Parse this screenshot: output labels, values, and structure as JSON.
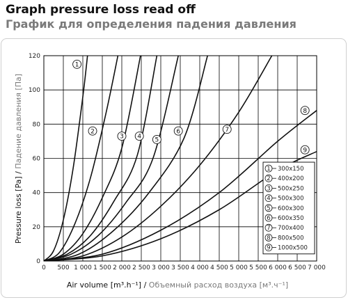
{
  "title_en": "Graph pressure loss read off",
  "title_ru": "График для определения падения давления",
  "chart_data": {
    "type": "line",
    "xlabel_en": "Air volume [m³.h⁻¹]",
    "xlabel_sep": " / ",
    "xlabel_ru": "Объемный расход воздуха [м³.ч⁻¹]",
    "ylabel_en": "Pressure loss [Pa]",
    "ylabel_sep": " / ",
    "ylabel_ru": "Падение давления [Па]",
    "xlim": [
      0,
      7000
    ],
    "ylim": [
      0,
      120
    ],
    "x_ticks": [
      0,
      500,
      1000,
      1500,
      2000,
      2500,
      3000,
      3500,
      4000,
      4500,
      5000,
      5500,
      6000,
      6500,
      7000
    ],
    "x_tick_labels": [
      "0",
      "500",
      "1 000",
      "1 500",
      "2 000",
      "2 500",
      "3 000",
      "3 500",
      "4 000",
      "4 500",
      "5 000",
      "5 500",
      "6 000",
      "6 500",
      "7 000"
    ],
    "y_ticks": [
      0,
      20,
      40,
      60,
      80,
      100,
      120
    ],
    "y_tick_labels": [
      "0",
      "20",
      "40",
      "60",
      "80",
      "100",
      "120"
    ],
    "grid": true,
    "legend_position": "bottom-right",
    "series": [
      {
        "name": "300x150",
        "label": "1",
        "points": [
          [
            0,
            0
          ],
          [
            250,
            6
          ],
          [
            500,
            24
          ],
          [
            750,
            54
          ],
          [
            1000,
            96
          ],
          [
            1120,
            120
          ]
        ]
      },
      {
        "name": "400x200",
        "label": "2",
        "points": [
          [
            0,
            0
          ],
          [
            400,
            5
          ],
          [
            800,
            22
          ],
          [
            1200,
            49
          ],
          [
            1600,
            87
          ],
          [
            1900,
            120
          ]
        ]
      },
      {
        "name": "500x250",
        "label": "3",
        "points": [
          [
            0,
            0
          ],
          [
            500,
            4
          ],
          [
            1000,
            16
          ],
          [
            1500,
            37
          ],
          [
            2000,
            66
          ],
          [
            2480,
            120
          ]
        ]
      },
      {
        "name": "500x300",
        "label": "4",
        "points": [
          [
            0,
            0
          ],
          [
            600,
            4
          ],
          [
            1200,
            15
          ],
          [
            1800,
            35
          ],
          [
            2400,
            62
          ],
          [
            2900,
            120
          ]
        ]
      },
      {
        "name": "600x300",
        "label": "5",
        "points": [
          [
            0,
            0
          ],
          [
            700,
            4
          ],
          [
            1400,
            15
          ],
          [
            2100,
            34
          ],
          [
            2800,
            60
          ],
          [
            3450,
            120
          ]
        ]
      },
      {
        "name": "600x350",
        "label": "6",
        "points": [
          [
            0,
            0
          ],
          [
            900,
            4
          ],
          [
            1800,
            18
          ],
          [
            2700,
            40
          ],
          [
            3600,
            72
          ],
          [
            4200,
            120
          ]
        ]
      },
      {
        "name": "700x400",
        "label": "7",
        "points": [
          [
            0,
            0
          ],
          [
            1000,
            3
          ],
          [
            2000,
            14
          ],
          [
            3000,
            32
          ],
          [
            4000,
            56
          ],
          [
            5000,
            87
          ],
          [
            5850,
            120
          ]
        ]
      },
      {
        "name": "800x500",
        "label": "8",
        "points": [
          [
            0,
            0
          ],
          [
            1500,
            4
          ],
          [
            3000,
            18
          ],
          [
            4500,
            40
          ],
          [
            6000,
            70
          ],
          [
            7000,
            88
          ]
        ]
      },
      {
        "name": "1000x500",
        "label": "9",
        "points": [
          [
            0,
            0
          ],
          [
            1500,
            3
          ],
          [
            3000,
            13
          ],
          [
            4500,
            30
          ],
          [
            6000,
            53
          ],
          [
            7000,
            64
          ]
        ]
      }
    ],
    "curve_labels": [
      {
        "label": "1",
        "x": 850,
        "y": 115
      },
      {
        "label": "2",
        "x": 1250,
        "y": 76
      },
      {
        "label": "3",
        "x": 2000,
        "y": 73
      },
      {
        "label": "4",
        "x": 2450,
        "y": 73
      },
      {
        "label": "5",
        "x": 2900,
        "y": 71
      },
      {
        "label": "6",
        "x": 3450,
        "y": 76
      },
      {
        "label": "7",
        "x": 4700,
        "y": 77
      },
      {
        "label": "8",
        "x": 6700,
        "y": 88
      },
      {
        "label": "9",
        "x": 6700,
        "y": 65
      }
    ]
  }
}
